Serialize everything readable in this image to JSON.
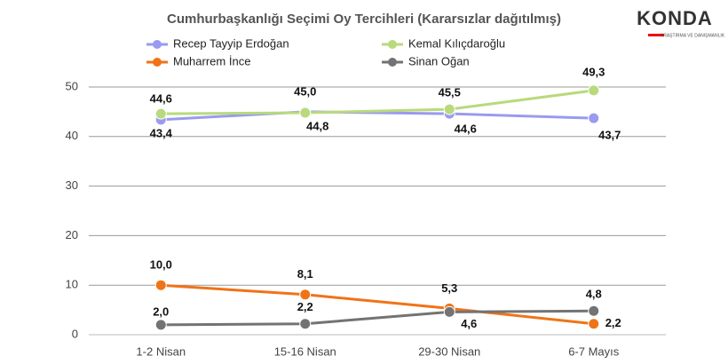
{
  "logo": {
    "name": "KONDA",
    "tagline": "ARAŞTIRMA VE DANIŞMANLIK"
  },
  "chart_data": {
    "type": "line",
    "title": "Cumhurbaşkanlığı Seçimi Oy Tercihleri (Kararsızlar dağıtılmış)",
    "categories": [
      "1-2 Nisan",
      "15-16 Nisan",
      "29-30 Nisan",
      "6-7 Mayıs"
    ],
    "series": [
      {
        "name": "Recep Tayyip Erdoğan",
        "color": "#9a9af0",
        "values": [
          43.4,
          45.0,
          44.6,
          43.7
        ],
        "value_labels": [
          "43,4",
          "45,0",
          "44,6",
          "43,7"
        ]
      },
      {
        "name": "Kemal Kılıçdaroğlu",
        "color": "#b8da7c",
        "values": [
          44.6,
          44.8,
          45.5,
          49.3
        ],
        "value_labels": [
          "44,6",
          "44,8",
          "45,5",
          "49,3"
        ]
      },
      {
        "name": "Muharrem İnce",
        "color": "#f07318",
        "values": [
          10.0,
          8.1,
          5.3,
          2.2
        ],
        "value_labels": [
          "10,0",
          "8,1",
          "5,3",
          "2,2"
        ]
      },
      {
        "name": "Sinan Oğan",
        "color": "#737373",
        "values": [
          2.0,
          2.2,
          4.6,
          4.8
        ],
        "value_labels": [
          "2,0",
          "2,2",
          "4,6",
          "4,8"
        ]
      }
    ],
    "ylim": [
      0,
      50
    ],
    "yticks": [
      0,
      10,
      20,
      30,
      40,
      50
    ],
    "grid": true
  }
}
